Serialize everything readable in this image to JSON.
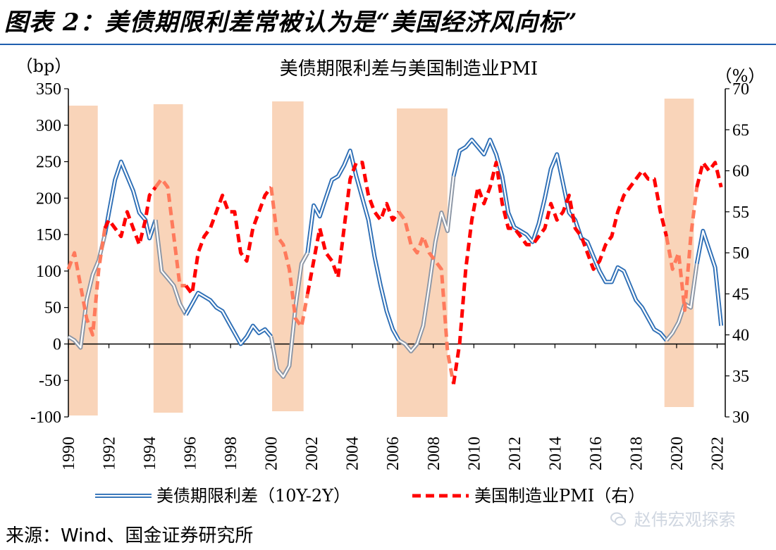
{
  "figure": {
    "title": "图表 2：美债期限利差常被认为是“美国经济风向标”",
    "source": "来源：Wind、国金证券研究所",
    "watermark": "赵伟宏观探索",
    "watermark_icon": "wechat-icon"
  },
  "colors": {
    "spread": "#2e6fb6",
    "spread_grey": "#8c96a5",
    "pmi": "#ff0000",
    "pmi_light": "#ff7a5c",
    "recession": "#f9d4b9",
    "rule": "#1f5fae"
  },
  "chart_data": {
    "type": "line",
    "title": "美债期限利差与美国制造业PMI",
    "y_left_unit": "（bp）",
    "y_right_unit": "（%）",
    "y_left_range": [
      -100,
      350
    ],
    "y_left_ticks": [
      "350",
      "300",
      "250",
      "200",
      "150",
      "100",
      "50",
      "0",
      "-50",
      "-100"
    ],
    "y_right_range": [
      30,
      70
    ],
    "y_right_ticks": [
      "70",
      "65",
      "60",
      "55",
      "50",
      "45",
      "40",
      "35",
      "30"
    ],
    "x_range": [
      1990.0,
      2022.4
    ],
    "x_ticks": [
      "1990",
      "1992",
      "1994",
      "1996",
      "1998",
      "2000",
      "2002",
      "2004",
      "2006",
      "2008",
      "2010",
      "2012",
      "2014",
      "2016",
      "2018",
      "2020",
      "2022"
    ],
    "grid": false,
    "legend_position": "bottom",
    "shaded_periods": [
      [
        1990.0,
        1991.45
      ],
      [
        1994.2,
        1995.65
      ],
      [
        2000.05,
        2001.6
      ],
      [
        2006.2,
        2008.7
      ],
      [
        2019.4,
        2020.85
      ]
    ],
    "series": [
      {
        "name": "美债期限利差（10Y-2Y）",
        "axis": "left",
        "style": "double-line",
        "x": [
          1990.0,
          1990.3,
          1990.6,
          1990.9,
          1991.2,
          1991.5,
          1991.8,
          1992.0,
          1992.3,
          1992.6,
          1992.9,
          1993.2,
          1993.5,
          1993.8,
          1994.0,
          1994.3,
          1994.6,
          1994.9,
          1995.2,
          1995.5,
          1995.8,
          1996.1,
          1996.4,
          1996.7,
          1997.0,
          1997.3,
          1997.6,
          1997.9,
          1998.2,
          1998.5,
          1998.8,
          1999.1,
          1999.4,
          1999.7,
          2000.0,
          2000.3,
          2000.6,
          2000.9,
          2001.2,
          2001.5,
          2001.8,
          2002.1,
          2002.4,
          2002.7,
          2003.0,
          2003.3,
          2003.6,
          2003.9,
          2004.2,
          2004.5,
          2004.8,
          2005.1,
          2005.4,
          2005.7,
          2006.0,
          2006.3,
          2006.6,
          2006.9,
          2007.2,
          2007.5,
          2007.8,
          2008.1,
          2008.4,
          2008.7,
          2009.0,
          2009.3,
          2009.6,
          2009.9,
          2010.2,
          2010.5,
          2010.8,
          2011.1,
          2011.4,
          2011.7,
          2012.0,
          2012.3,
          2012.6,
          2012.9,
          2013.2,
          2013.5,
          2013.8,
          2014.1,
          2014.4,
          2014.7,
          2015.0,
          2015.3,
          2015.6,
          2015.9,
          2016.2,
          2016.5,
          2016.8,
          2017.1,
          2017.4,
          2017.7,
          2018.0,
          2018.3,
          2018.6,
          2018.9,
          2019.2,
          2019.5,
          2019.8,
          2020.1,
          2020.4,
          2020.7,
          2021.0,
          2021.3,
          2021.6,
          2021.9,
          2022.2
        ],
        "values": [
          10,
          5,
          -5,
          60,
          95,
          115,
          150,
          180,
          225,
          250,
          230,
          210,
          180,
          170,
          145,
          170,
          100,
          90,
          80,
          55,
          40,
          55,
          70,
          65,
          60,
          50,
          45,
          30,
          15,
          0,
          10,
          25,
          15,
          20,
          10,
          -35,
          -45,
          -30,
          50,
          110,
          125,
          190,
          175,
          200,
          225,
          230,
          245,
          265,
          230,
          200,
          170,
          120,
          80,
          45,
          20,
          5,
          0,
          -10,
          0,
          25,
          80,
          140,
          180,
          155,
          230,
          265,
          270,
          280,
          270,
          260,
          280,
          260,
          230,
          180,
          160,
          155,
          150,
          140,
          165,
          200,
          240,
          260,
          220,
          180,
          170,
          145,
          140,
          120,
          100,
          85,
          85,
          105,
          100,
          80,
          60,
          50,
          35,
          20,
          15,
          5,
          15,
          30,
          55,
          50,
          110,
          155,
          130,
          105,
          25
        ]
      },
      {
        "name": "美国制造业PMI（右）",
        "axis": "right",
        "style": "dashed",
        "x": [
          1990.0,
          1990.3,
          1990.6,
          1990.9,
          1991.2,
          1991.5,
          1991.8,
          1992.0,
          1992.3,
          1992.6,
          1992.9,
          1993.2,
          1993.5,
          1993.8,
          1994.0,
          1994.3,
          1994.6,
          1994.9,
          1995.2,
          1995.5,
          1995.8,
          1996.1,
          1996.4,
          1996.7,
          1997.0,
          1997.3,
          1997.6,
          1997.9,
          1998.2,
          1998.5,
          1998.8,
          1999.1,
          1999.4,
          1999.7,
          2000.0,
          2000.3,
          2000.6,
          2000.9,
          2001.2,
          2001.5,
          2001.8,
          2002.1,
          2002.4,
          2002.7,
          2003.0,
          2003.3,
          2003.6,
          2003.9,
          2004.2,
          2004.5,
          2004.8,
          2005.1,
          2005.4,
          2005.7,
          2006.0,
          2006.3,
          2006.6,
          2006.9,
          2007.2,
          2007.5,
          2007.8,
          2008.1,
          2008.4,
          2008.7,
          2009.0,
          2009.3,
          2009.6,
          2009.9,
          2010.2,
          2010.5,
          2010.8,
          2011.1,
          2011.4,
          2011.7,
          2012.0,
          2012.3,
          2012.6,
          2012.9,
          2013.2,
          2013.5,
          2013.8,
          2014.1,
          2014.4,
          2014.7,
          2015.0,
          2015.3,
          2015.6,
          2015.9,
          2016.2,
          2016.5,
          2016.8,
          2017.1,
          2017.4,
          2017.7,
          2018.0,
          2018.3,
          2018.6,
          2018.9,
          2019.2,
          2019.5,
          2019.8,
          2020.1,
          2020.4,
          2020.7,
          2021.0,
          2021.3,
          2021.6,
          2021.9,
          2022.2
        ],
        "values": [
          48,
          50,
          46,
          42,
          40,
          48,
          53,
          54,
          53,
          52,
          55,
          53,
          51,
          54,
          57,
          58,
          59,
          58,
          52,
          46,
          46,
          45,
          50,
          52,
          53,
          55,
          57,
          55,
          55,
          50,
          49,
          53,
          55,
          57,
          58,
          52,
          51,
          48,
          42,
          41,
          45,
          49,
          53,
          50,
          49,
          47,
          53,
          59,
          61,
          61,
          57,
          55,
          54,
          56,
          54,
          55,
          54,
          51,
          50,
          52,
          50,
          49,
          48,
          38,
          34,
          39,
          48,
          54,
          58,
          56,
          58,
          61,
          56,
          53,
          53,
          52,
          51,
          51,
          52,
          53,
          56,
          54,
          55,
          57,
          53,
          52,
          50,
          48,
          49,
          51,
          52,
          55,
          57,
          58,
          59,
          60,
          59,
          59,
          55,
          52,
          48,
          50,
          43,
          52,
          58,
          61,
          60,
          61,
          58
        ]
      }
    ]
  }
}
